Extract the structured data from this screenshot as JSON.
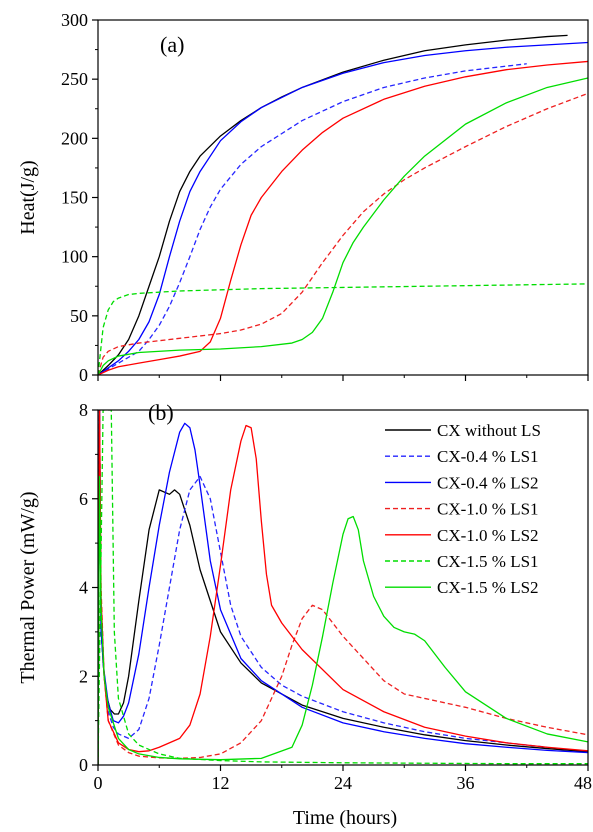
{
  "xlabel": "Time (hours)",
  "chart_data": [
    {
      "type": "line",
      "panel_label": "(a)",
      "ylabel": "Heat(J/g)",
      "xlim": [
        0,
        48
      ],
      "ylim": [
        0,
        300
      ],
      "xticks": [
        0,
        12,
        24,
        36,
        48
      ],
      "yticks": [
        0,
        50,
        100,
        150,
        200,
        250,
        300
      ],
      "grid": false,
      "series": [
        {
          "name": "CX without LS",
          "color": "#000000",
          "dash": "solid",
          "x": [
            0,
            1,
            2,
            3,
            4,
            5,
            6,
            7,
            8,
            9,
            10,
            12,
            14,
            16,
            18,
            20,
            24,
            28,
            32,
            36,
            40,
            44,
            46
          ],
          "y": [
            0,
            8,
            17,
            30,
            50,
            75,
            100,
            130,
            155,
            172,
            185,
            202,
            215,
            226,
            235,
            243,
            256,
            266,
            274,
            279,
            283,
            286,
            287
          ]
        },
        {
          "name": "CX-0.4 % LS1",
          "color": "#2626ff",
          "dash": "dashed",
          "x": [
            0,
            1,
            2,
            3,
            4,
            5,
            6,
            7,
            8,
            9,
            10,
            11,
            12,
            14,
            16,
            20,
            24,
            28,
            32,
            36,
            40,
            42
          ],
          "y": [
            0,
            5,
            10,
            15,
            20,
            30,
            42,
            58,
            78,
            100,
            123,
            142,
            157,
            178,
            193,
            215,
            231,
            243,
            251,
            257,
            261,
            263
          ]
        },
        {
          "name": "CX-0.4 % LS2",
          "color": "#0000ff",
          "dash": "solid",
          "x": [
            0,
            1,
            2,
            3,
            4,
            5,
            6,
            7,
            8,
            9,
            10,
            12,
            14,
            16,
            20,
            24,
            28,
            32,
            36,
            40,
            44,
            48
          ],
          "y": [
            0,
            6,
            12,
            20,
            30,
            45,
            68,
            100,
            130,
            155,
            172,
            198,
            214,
            226,
            243,
            255,
            264,
            270,
            274,
            277,
            279,
            281
          ]
        },
        {
          "name": "CX-1.0 % LS1",
          "color": "#ee2020",
          "dash": "dashed",
          "x": [
            0,
            0.5,
            1,
            2,
            4,
            6,
            8,
            10,
            12,
            14,
            16,
            18,
            20,
            22,
            24,
            26,
            28,
            30,
            32,
            36,
            40,
            44,
            48
          ],
          "y": [
            0,
            15,
            20,
            24,
            27,
            29,
            31,
            33,
            35,
            38,
            43,
            52,
            70,
            95,
            118,
            138,
            153,
            165,
            175,
            193,
            210,
            225,
            238
          ]
        },
        {
          "name": "CX-1.0 % LS2",
          "color": "#ff0000",
          "dash": "solid",
          "x": [
            0,
            1,
            2,
            4,
            6,
            8,
            10,
            11,
            12,
            13,
            14,
            15,
            16,
            18,
            20,
            22,
            24,
            28,
            32,
            36,
            40,
            44,
            48
          ],
          "y": [
            0,
            4,
            7,
            10,
            13,
            16,
            20,
            28,
            48,
            80,
            110,
            135,
            150,
            172,
            190,
            205,
            217,
            233,
            244,
            252,
            258,
            262,
            265
          ]
        },
        {
          "name": "CX-1.5 % LS1",
          "color": "#00dd00",
          "dash": "dashed",
          "x": [
            0,
            0.5,
            1,
            1.5,
            2,
            3,
            4,
            6,
            8,
            12,
            16,
            24,
            32,
            40,
            48
          ],
          "y": [
            0,
            40,
            55,
            62,
            65,
            68,
            69,
            70,
            71,
            72,
            73,
            74,
            75,
            76,
            77
          ]
        },
        {
          "name": "CX-1.5 % LS2",
          "color": "#00dd00",
          "dash": "solid",
          "x": [
            0,
            0.5,
            1,
            2,
            4,
            8,
            12,
            16,
            19,
            20,
            21,
            22,
            23,
            24,
            25,
            26,
            28,
            30,
            32,
            36,
            40,
            44,
            48
          ],
          "y": [
            0,
            8,
            12,
            16,
            19,
            21,
            22,
            24,
            27,
            30,
            36,
            48,
            70,
            95,
            112,
            125,
            148,
            168,
            185,
            212,
            230,
            243,
            251
          ]
        }
      ]
    },
    {
      "type": "line",
      "panel_label": "(b)",
      "ylabel": "Thermal Power (mW/g)",
      "xlim": [
        0,
        48
      ],
      "ylim": [
        0,
        8
      ],
      "xticks": [
        0,
        12,
        24,
        36,
        48
      ],
      "xtick_labels": [
        "0",
        "12",
        "24",
        "36",
        "48"
      ],
      "yticks": [
        0,
        2,
        4,
        6,
        8
      ],
      "grid": false,
      "legend": "top-right",
      "series": [
        {
          "name": "CX without LS",
          "color": "#000000",
          "dash": "solid",
          "x": [
            0,
            0.15,
            0.3,
            0.5,
            0.8,
            1.2,
            1.6,
            2,
            2.5,
            3,
            4,
            5,
            6,
            7,
            7.5,
            8,
            9,
            10,
            12,
            14,
            16,
            20,
            24,
            28,
            32,
            36,
            40,
            44,
            48
          ],
          "y": [
            0,
            8,
            3.2,
            2.3,
            1.6,
            1.25,
            1.15,
            1.15,
            1.4,
            2.0,
            3.7,
            5.3,
            6.2,
            6.1,
            6.2,
            6.1,
            5.4,
            4.4,
            3.0,
            2.3,
            1.85,
            1.35,
            1.05,
            0.85,
            0.68,
            0.55,
            0.45,
            0.37,
            0.3
          ]
        },
        {
          "name": "CX-0.4 % LS1",
          "color": "#2626ff",
          "dash": "dashed",
          "x": [
            0,
            0.15,
            0.3,
            0.6,
            1,
            1.5,
            2,
            3,
            4,
            5,
            6,
            7,
            8,
            9,
            10,
            11,
            12,
            13,
            14,
            16,
            18,
            20,
            24,
            28,
            32,
            36,
            40,
            44
          ],
          "y": [
            0,
            8,
            3.0,
            2.0,
            1.2,
            0.85,
            0.7,
            0.6,
            0.8,
            1.5,
            2.7,
            4.0,
            5.3,
            6.2,
            6.5,
            6.0,
            4.8,
            3.6,
            2.9,
            2.2,
            1.8,
            1.55,
            1.2,
            0.95,
            0.75,
            0.6,
            0.5,
            0.4
          ]
        },
        {
          "name": "CX-0.4 % LS2",
          "color": "#0000ff",
          "dash": "solid",
          "x": [
            0,
            0.15,
            0.3,
            0.6,
            1,
            1.5,
            2,
            2.5,
            3,
            4,
            5,
            6,
            7,
            8,
            8.5,
            9,
            9.5,
            10,
            11,
            12,
            14,
            16,
            20,
            24,
            28,
            32,
            36,
            40,
            44,
            48
          ],
          "y": [
            0,
            8,
            3.0,
            2.1,
            1.4,
            1.0,
            0.95,
            1.1,
            1.4,
            2.5,
            4.0,
            5.4,
            6.6,
            7.5,
            7.7,
            7.6,
            7.1,
            6.3,
            4.6,
            3.5,
            2.4,
            1.9,
            1.3,
            0.95,
            0.75,
            0.6,
            0.48,
            0.4,
            0.33,
            0.28
          ]
        },
        {
          "name": "CX-1.0 % LS1",
          "color": "#ee2020",
          "dash": "dashed",
          "x": [
            0,
            0.15,
            0.3,
            0.6,
            1,
            2,
            3,
            4,
            6,
            8,
            10,
            12,
            14,
            16,
            18,
            19,
            20,
            21,
            22,
            23,
            24,
            26,
            28,
            30,
            32,
            36,
            40,
            44,
            48
          ],
          "y": [
            0,
            8,
            4.0,
            2.0,
            1.0,
            0.45,
            0.28,
            0.2,
            0.16,
            0.15,
            0.17,
            0.25,
            0.5,
            1.0,
            2.0,
            2.7,
            3.3,
            3.6,
            3.5,
            3.2,
            2.9,
            2.4,
            1.9,
            1.6,
            1.5,
            1.3,
            1.05,
            0.85,
            0.68
          ]
        },
        {
          "name": "CX-1.0 % LS2",
          "color": "#ff0000",
          "dash": "solid",
          "x": [
            0,
            0.15,
            0.3,
            0.6,
            1,
            2,
            3,
            4,
            5,
            6,
            8,
            9,
            10,
            11,
            12,
            13,
            14,
            14.5,
            15,
            15.5,
            16,
            16.5,
            17,
            18,
            20,
            24,
            28,
            32,
            36,
            40,
            44,
            48
          ],
          "y": [
            0,
            8,
            3.8,
            2.0,
            1.0,
            0.5,
            0.35,
            0.3,
            0.32,
            0.4,
            0.6,
            0.9,
            1.6,
            2.9,
            4.5,
            6.2,
            7.3,
            7.65,
            7.6,
            6.9,
            5.5,
            4.3,
            3.6,
            3.2,
            2.6,
            1.7,
            1.2,
            0.85,
            0.65,
            0.5,
            0.4,
            0.32
          ]
        },
        {
          "name": "CX-1.5 % LS1",
          "color": "#00dd00",
          "dash": "dashed",
          "x": [
            0,
            0.5,
            1,
            1.3,
            1.6,
            2,
            3,
            4,
            6,
            8,
            12,
            16,
            24,
            32,
            40,
            48
          ],
          "y": [
            0,
            8,
            8,
            8,
            3.0,
            1.5,
            0.7,
            0.45,
            0.25,
            0.15,
            0.1,
            0.07,
            0.05,
            0.04,
            0.03,
            0.03
          ]
        },
        {
          "name": "CX-1.5 % LS2",
          "color": "#00dd00",
          "dash": "solid",
          "x": [
            0,
            0.15,
            0.3,
            0.6,
            1,
            2,
            3,
            4,
            6,
            8,
            12,
            16,
            19,
            20,
            21,
            22,
            23,
            24,
            24.5,
            25,
            25.5,
            26,
            27,
            28,
            29,
            30,
            31,
            32,
            34,
            36,
            40,
            44,
            48
          ],
          "y": [
            0,
            6.5,
            3.5,
            2.0,
            1.3,
            0.6,
            0.35,
            0.25,
            0.17,
            0.14,
            0.12,
            0.15,
            0.4,
            0.9,
            1.8,
            2.9,
            4.1,
            5.2,
            5.55,
            5.6,
            5.3,
            4.6,
            3.8,
            3.35,
            3.1,
            3.0,
            2.95,
            2.8,
            2.2,
            1.65,
            1.05,
            0.7,
            0.52
          ]
        }
      ]
    }
  ]
}
